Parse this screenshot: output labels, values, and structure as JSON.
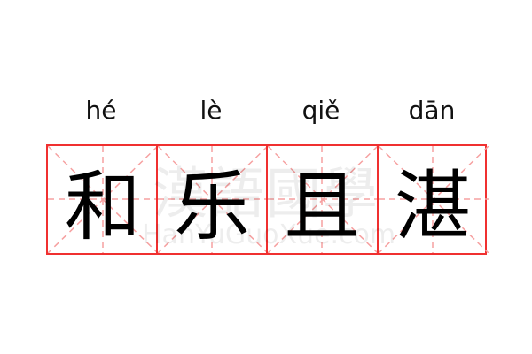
{
  "pinyin": [
    "hé",
    "lè",
    "qiě",
    "dān"
  ],
  "characters": [
    "和",
    "乐",
    "且",
    "湛"
  ],
  "watermark": {
    "chinese": "漢語國學",
    "latin": "HanYuGuoXue.com"
  },
  "colors": {
    "border": "#f03030",
    "guide": "#f6a0a0",
    "text": "#000000"
  }
}
